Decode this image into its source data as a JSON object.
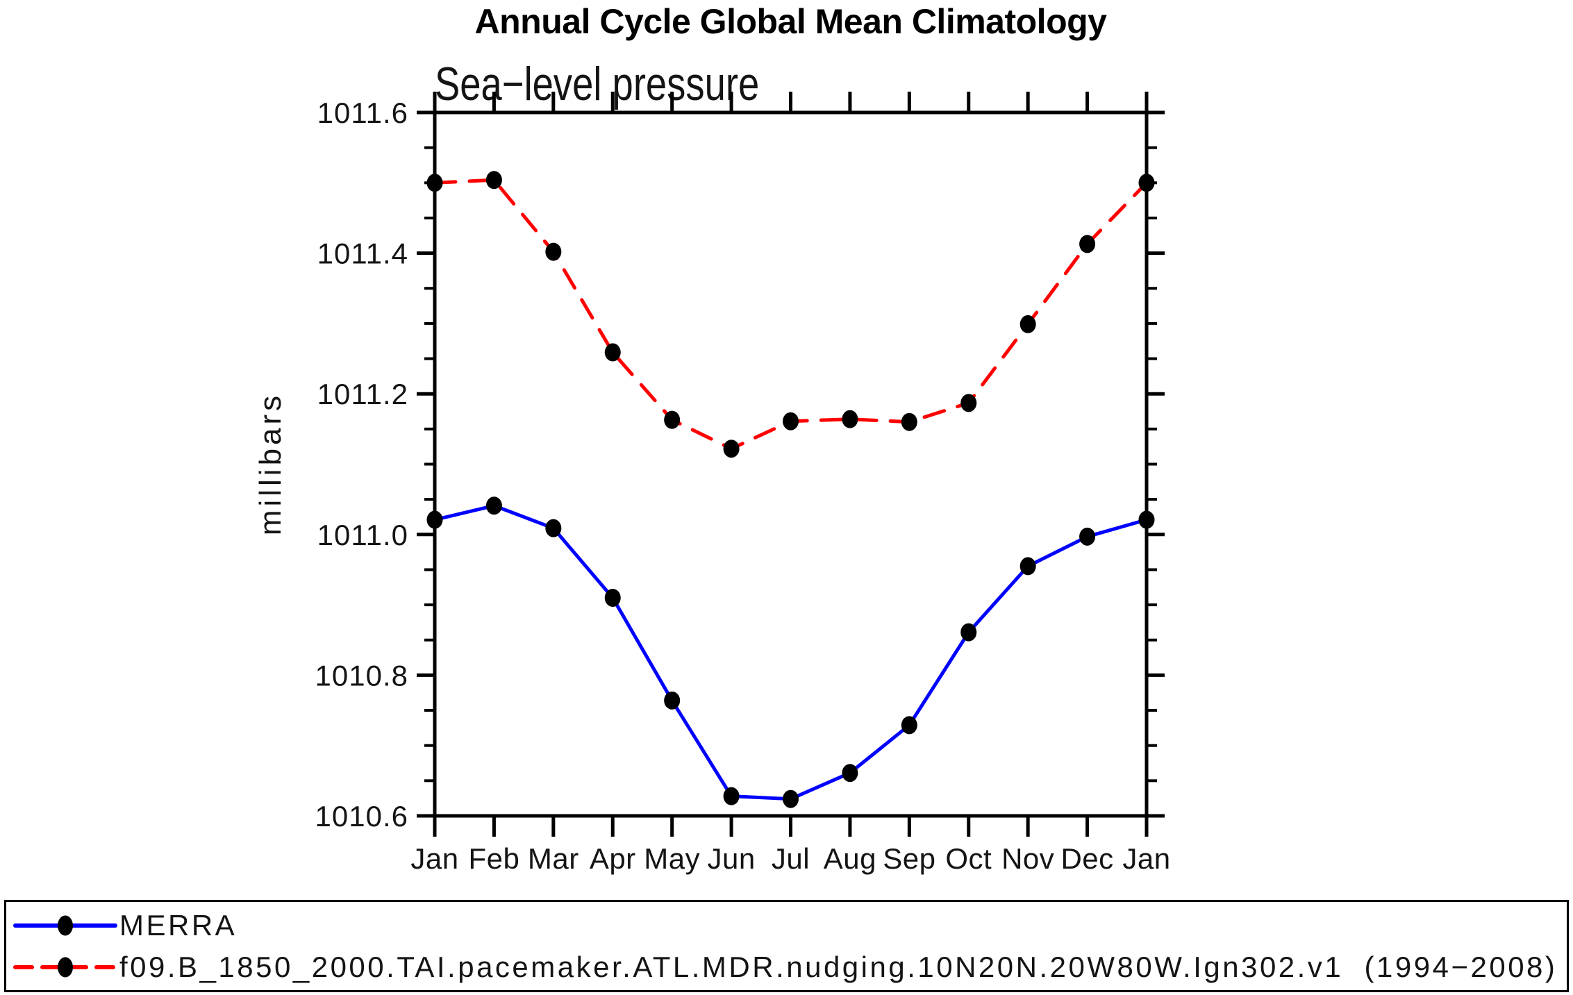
{
  "chart_data": {
    "type": "line",
    "title": "Annual Cycle Global Mean Climatology",
    "subtitle": "Sea−level pressure",
    "xlabel": "",
    "ylabel": "millibars",
    "categories": [
      "Jan",
      "Feb",
      "Mar",
      "Apr",
      "May",
      "Jun",
      "Jul",
      "Aug",
      "Sep",
      "Oct",
      "Nov",
      "Dec",
      "Jan"
    ],
    "ylim": [
      1010.6,
      1011.6
    ],
    "y_major_step": 0.2,
    "y_minor_step": 0.05,
    "y_tick_labels": [
      "1010.6",
      "1010.8",
      "1011.0",
      "1011.2",
      "1011.4",
      "1011.6"
    ],
    "grid": false,
    "legend_position": "bottom",
    "axis_color": "#000000",
    "marker_color": "#000000",
    "series": [
      {
        "name": "MERRA",
        "color": "#0000ff",
        "line_style": "solid",
        "marker": "filled-circle",
        "values": [
          1011.021,
          1011.041,
          1011.009,
          1010.91,
          1010.764,
          1010.628,
          1010.624,
          1010.661,
          1010.729,
          1010.861,
          1010.955,
          1010.997,
          1011.021
        ]
      },
      {
        "name": "f09.B_1850_2000.TAI.pacemaker.ATL.MDR.nudging.10N20N.20W80W.Ign302.v1  (1994−2008)",
        "color": "#ff0000",
        "line_style": "dashed",
        "marker": "filled-circle",
        "values": [
          1011.5,
          1011.504,
          1011.402,
          1011.259,
          1011.163,
          1011.122,
          1011.161,
          1011.164,
          1011.16,
          1011.187,
          1011.299,
          1011.413,
          1011.5
        ]
      }
    ]
  }
}
